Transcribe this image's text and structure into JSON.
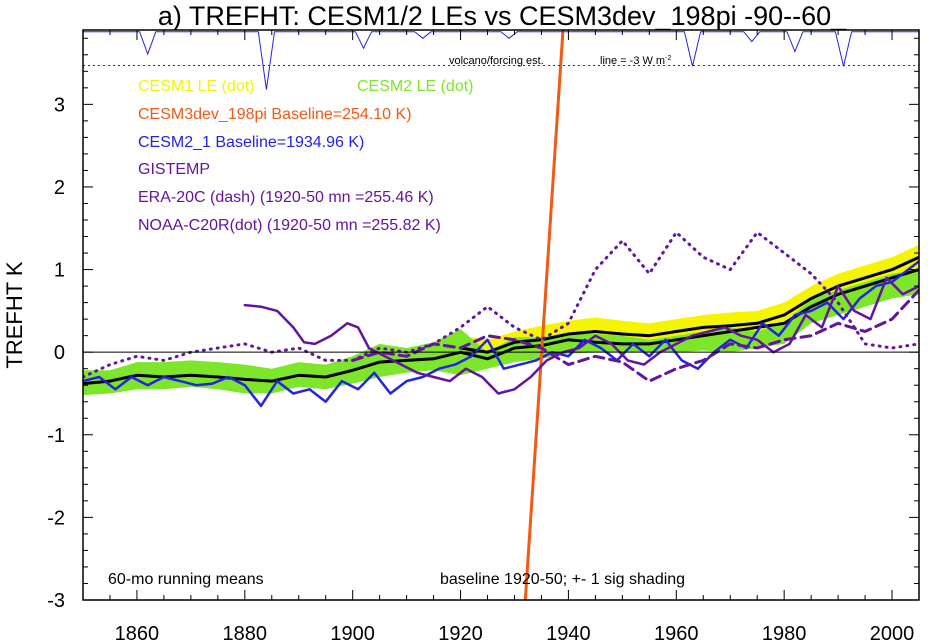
{
  "chart_data": {
    "type": "line",
    "title": "a) TREFHT: CESM1/2 LEs vs CESM3dev_198pi -90--60_",
    "xlabel": "",
    "ylabel": "TREFHT K",
    "xlim": [
      1850,
      2005
    ],
    "ylim": [
      -3,
      3.9
    ],
    "xticks": [
      1860,
      1880,
      1900,
      1920,
      1940,
      1960,
      1980,
      2000
    ],
    "yticks": [
      -3,
      -2,
      -1,
      0,
      1,
      2,
      3
    ],
    "annotations": {
      "volcano": "volcano/forcing est.",
      "line_label": "line = -3 W m",
      "line_label_sup": "-2",
      "bottom_left": "60-mo running means",
      "bottom_right": "baseline 1920-50; +- 1 sig shading"
    },
    "legend": [
      {
        "label": "CESM1 LE (dot)",
        "color": "#f5f500"
      },
      {
        "label": "CESM2 LE (dot)",
        "color": "#7de62a"
      },
      {
        "label": "CESM3dev_198pi Baseline=254.10 K)",
        "color": "#f05a14"
      },
      {
        "label": "CESM2_1 Baseline=1934.96 K)",
        "color": "#2323e6"
      },
      {
        "label": "GISTEMP",
        "color": "#6414a0"
      },
      {
        "label": "ERA-20C (dash) (1920-50 mn =255.46 K)",
        "color": "#6414a0"
      },
      {
        "label": "NOAA-C20R(dot) (1920-50 mn =255.82 K)",
        "color": "#6414a0"
      }
    ],
    "series": [
      {
        "name": "CESM1 LE envelope",
        "style": "band",
        "color": "#f5f500",
        "x": [
          1920,
          1925,
          1930,
          1935,
          1940,
          1945,
          1950,
          1955,
          1960,
          1965,
          1970,
          1975,
          1980,
          1985,
          1990,
          1995,
          2000,
          2005
        ],
        "lower": [
          -0.05,
          -0.12,
          -0.1,
          -0.05,
          0.02,
          0.0,
          0.0,
          0.05,
          0.1,
          0.12,
          0.15,
          0.2,
          0.3,
          0.5,
          0.65,
          0.75,
          0.85,
          0.95
        ],
        "upper": [
          0.2,
          0.15,
          0.25,
          0.32,
          0.38,
          0.42,
          0.38,
          0.35,
          0.4,
          0.45,
          0.48,
          0.5,
          0.6,
          0.8,
          0.95,
          1.05,
          1.15,
          1.3
        ]
      },
      {
        "name": "CESM2 LE envelope",
        "style": "band",
        "color": "#7de62a",
        "x": [
          1850,
          1855,
          1860,
          1865,
          1870,
          1875,
          1880,
          1885,
          1890,
          1895,
          1900,
          1905,
          1910,
          1915,
          1920,
          1925,
          1930,
          1935,
          1940,
          1945,
          1950,
          1955,
          1960,
          1965,
          1970,
          1975,
          1980,
          1985,
          1990,
          1995,
          2000,
          2005
        ],
        "lower": [
          -0.52,
          -0.5,
          -0.45,
          -0.45,
          -0.42,
          -0.45,
          -0.5,
          -0.5,
          -0.42,
          -0.45,
          -0.38,
          -0.3,
          -0.25,
          -0.22,
          -0.28,
          -0.2,
          -0.12,
          -0.08,
          -0.02,
          0.0,
          0.0,
          0.0,
          0.0,
          0.02,
          0.0,
          0.05,
          0.1,
          0.35,
          0.45,
          0.55,
          0.65,
          0.7
        ],
        "upper": [
          -0.22,
          -0.22,
          -0.12,
          -0.12,
          -0.1,
          -0.12,
          -0.15,
          -0.2,
          -0.12,
          -0.15,
          -0.05,
          0.1,
          0.05,
          0.12,
          0.28,
          0.0,
          0.18,
          0.18,
          0.22,
          0.22,
          0.2,
          0.15,
          0.2,
          0.25,
          0.3,
          0.25,
          0.35,
          0.65,
          0.75,
          0.85,
          0.95,
          1.0
        ]
      },
      {
        "name": "Ensemble mean A",
        "style": "solid-thick",
        "color": "#000000",
        "x": [
          1850,
          1855,
          1860,
          1865,
          1870,
          1875,
          1880,
          1885,
          1890,
          1895,
          1900,
          1905,
          1910,
          1915,
          1920,
          1925,
          1930,
          1935,
          1940,
          1945,
          1950,
          1955,
          1960,
          1965,
          1970,
          1975,
          1980,
          1985,
          1990,
          1995,
          2000,
          2005
        ],
        "y": [
          -0.38,
          -0.35,
          -0.28,
          -0.3,
          -0.28,
          -0.3,
          -0.33,
          -0.35,
          -0.28,
          -0.3,
          -0.22,
          -0.12,
          -0.1,
          -0.08,
          0.0,
          -0.08,
          0.05,
          0.08,
          0.15,
          0.12,
          0.1,
          0.1,
          0.15,
          0.2,
          0.25,
          0.3,
          0.35,
          0.55,
          0.7,
          0.8,
          0.9,
          1.0
        ]
      },
      {
        "name": "Ensemble mean B",
        "style": "solid-thick",
        "color": "#000000",
        "x": [
          1920,
          1925,
          1930,
          1935,
          1940,
          1945,
          1950,
          1955,
          1960,
          1965,
          1970,
          1975,
          1980,
          1985,
          1990,
          1995,
          2000,
          2005
        ],
        "y": [
          0.05,
          0.0,
          0.12,
          0.15,
          0.22,
          0.25,
          0.22,
          0.2,
          0.25,
          0.3,
          0.32,
          0.35,
          0.45,
          0.65,
          0.8,
          0.9,
          1.0,
          1.15
        ]
      },
      {
        "name": "CESM2_1",
        "style": "solid",
        "color": "#2323e6",
        "x": [
          1850,
          1853,
          1856,
          1859,
          1862,
          1865,
          1868,
          1871,
          1874,
          1877,
          1880,
          1883,
          1886,
          1889,
          1892,
          1895,
          1898,
          1901,
          1904,
          1907,
          1910,
          1913,
          1916,
          1919,
          1922,
          1925,
          1928,
          1931,
          1934,
          1937,
          1940,
          1943,
          1946,
          1949,
          1952,
          1955,
          1958,
          1961,
          1964,
          1967,
          1970,
          1973,
          1976,
          1979,
          1982,
          1985,
          1988,
          1991,
          1994,
          1997,
          2000,
          2003,
          2005
        ],
        "y": [
          -0.35,
          -0.3,
          -0.45,
          -0.3,
          -0.4,
          -0.3,
          -0.35,
          -0.4,
          -0.38,
          -0.3,
          -0.4,
          -0.65,
          -0.35,
          -0.5,
          -0.45,
          -0.6,
          -0.35,
          -0.45,
          -0.25,
          -0.5,
          -0.35,
          -0.3,
          -0.2,
          -0.15,
          -0.05,
          0.15,
          -0.2,
          -0.15,
          -0.1,
          0.0,
          -0.05,
          0.15,
          0.05,
          -0.1,
          0.1,
          -0.05,
          0.15,
          -0.1,
          -0.2,
          0.0,
          0.15,
          0.05,
          0.35,
          0.2,
          0.45,
          0.5,
          0.6,
          0.4,
          0.65,
          0.8,
          0.85,
          1.0,
          1.1
        ]
      },
      {
        "name": "CESM3dev_198pi",
        "style": "solid-thick",
        "color": "#f05a14",
        "x": [
          1932,
          1939
        ],
        "y": [
          -3.0,
          3.9
        ]
      },
      {
        "name": "GISTEMP",
        "style": "solid",
        "color": "#6414a0",
        "x": [
          1880,
          1883,
          1886,
          1889,
          1891,
          1893,
          1896,
          1899,
          1901,
          1903,
          1906,
          1909,
          1912,
          1915,
          1918,
          1921,
          1924,
          1927,
          1930,
          1933,
          1936,
          1939,
          1942,
          1945,
          1948,
          1951,
          1954,
          1957,
          1960,
          1963,
          1966,
          1969,
          1972,
          1975,
          1978,
          1981,
          1984,
          1987,
          1990,
          1993,
          1996,
          1999,
          2002,
          2005
        ],
        "y": [
          0.57,
          0.55,
          0.5,
          0.3,
          0.12,
          0.1,
          0.2,
          0.35,
          0.3,
          0.05,
          -0.05,
          -0.15,
          -0.25,
          -0.3,
          -0.35,
          -0.2,
          -0.3,
          -0.5,
          -0.45,
          -0.3,
          -0.1,
          0.0,
          0.05,
          0.2,
          0.1,
          -0.1,
          -0.15,
          0.0,
          0.1,
          0.2,
          0.25,
          0.3,
          0.2,
          0.15,
          0.0,
          0.1,
          0.45,
          0.3,
          0.8,
          0.5,
          0.4,
          0.9,
          0.7,
          0.8
        ]
      },
      {
        "name": "ERA-20C",
        "style": "dash",
        "color": "#6414a0",
        "x": [
          1900,
          1905,
          1910,
          1915,
          1920,
          1925,
          1930,
          1935,
          1940,
          1945,
          1950,
          1955,
          1960,
          1965,
          1970,
          1975,
          1980,
          1985,
          1990,
          1995,
          2000,
          2005
        ],
        "y": [
          -0.1,
          0.0,
          -0.05,
          0.1,
          0.05,
          0.2,
          0.15,
          0.05,
          -0.15,
          -0.05,
          -0.12,
          -0.35,
          -0.2,
          -0.1,
          0.1,
          0.05,
          0.15,
          0.2,
          0.35,
          0.25,
          0.4,
          0.75
        ]
      },
      {
        "name": "NOAA-C20R",
        "style": "dot",
        "color": "#6414a0",
        "x": [
          1850,
          1855,
          1860,
          1865,
          1870,
          1875,
          1880,
          1885,
          1890,
          1895,
          1900,
          1905,
          1910,
          1915,
          1920,
          1925,
          1930,
          1935,
          1940,
          1945,
          1950,
          1955,
          1960,
          1965,
          1970,
          1975,
          1980,
          1985,
          1990,
          1995,
          2000,
          2005
        ],
        "y": [
          -0.3,
          -0.15,
          -0.05,
          -0.1,
          0.0,
          0.05,
          0.1,
          0.0,
          0.05,
          -0.1,
          -0.1,
          0.05,
          0.0,
          0.1,
          0.3,
          0.55,
          0.3,
          0.15,
          0.35,
          1.0,
          1.35,
          0.95,
          1.45,
          1.15,
          1.0,
          1.45,
          1.2,
          0.95,
          0.6,
          0.1,
          0.05,
          0.1
        ]
      }
    ],
    "volcano_strip": {
      "color": "#2323e6",
      "baseline_y": 3.88,
      "threshold_y": 3.47,
      "spikes": [
        {
          "year": 1862,
          "depth": 0.27
        },
        {
          "year": 1884,
          "depth": 0.7
        },
        {
          "year": 1902,
          "depth": 0.2
        },
        {
          "year": 1913,
          "depth": 0.08
        },
        {
          "year": 1929,
          "depth": 0.08
        },
        {
          "year": 1963,
          "depth": 0.42
        },
        {
          "year": 1974,
          "depth": 0.12
        },
        {
          "year": 1982,
          "depth": 0.24
        },
        {
          "year": 1991,
          "depth": 0.42
        }
      ]
    }
  }
}
